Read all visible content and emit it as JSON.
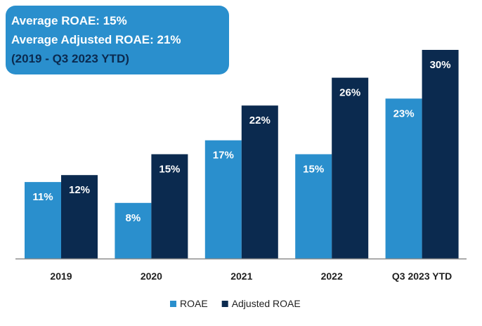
{
  "summary": {
    "line1": "Average ROAE: 15%",
    "line2": "Average Adjusted ROAE: 21%",
    "line3": "(2019 - Q3 2023 YTD)",
    "box_color": "#2a8fcd",
    "note_color": "#0b2a4f"
  },
  "chart_data": {
    "type": "bar",
    "categories": [
      "2019",
      "2020",
      "2021",
      "2022",
      "Q3 2023 YTD"
    ],
    "series": [
      {
        "name": "ROAE",
        "values": [
          11,
          8,
          17,
          15,
          23
        ],
        "labels": [
          "11%",
          "8%",
          "17%",
          "15%",
          "23%"
        ],
        "color": "#2a8fcd"
      },
      {
        "name": "Adjusted ROAE",
        "values": [
          12,
          15,
          22,
          26,
          30
        ],
        "labels": [
          "12%",
          "15%",
          "22%",
          "26%",
          "30%"
        ],
        "color": "#0b2a4f"
      }
    ],
    "ylim": [
      0,
      30
    ],
    "grid": false,
    "legend_position": "bottom-center"
  }
}
